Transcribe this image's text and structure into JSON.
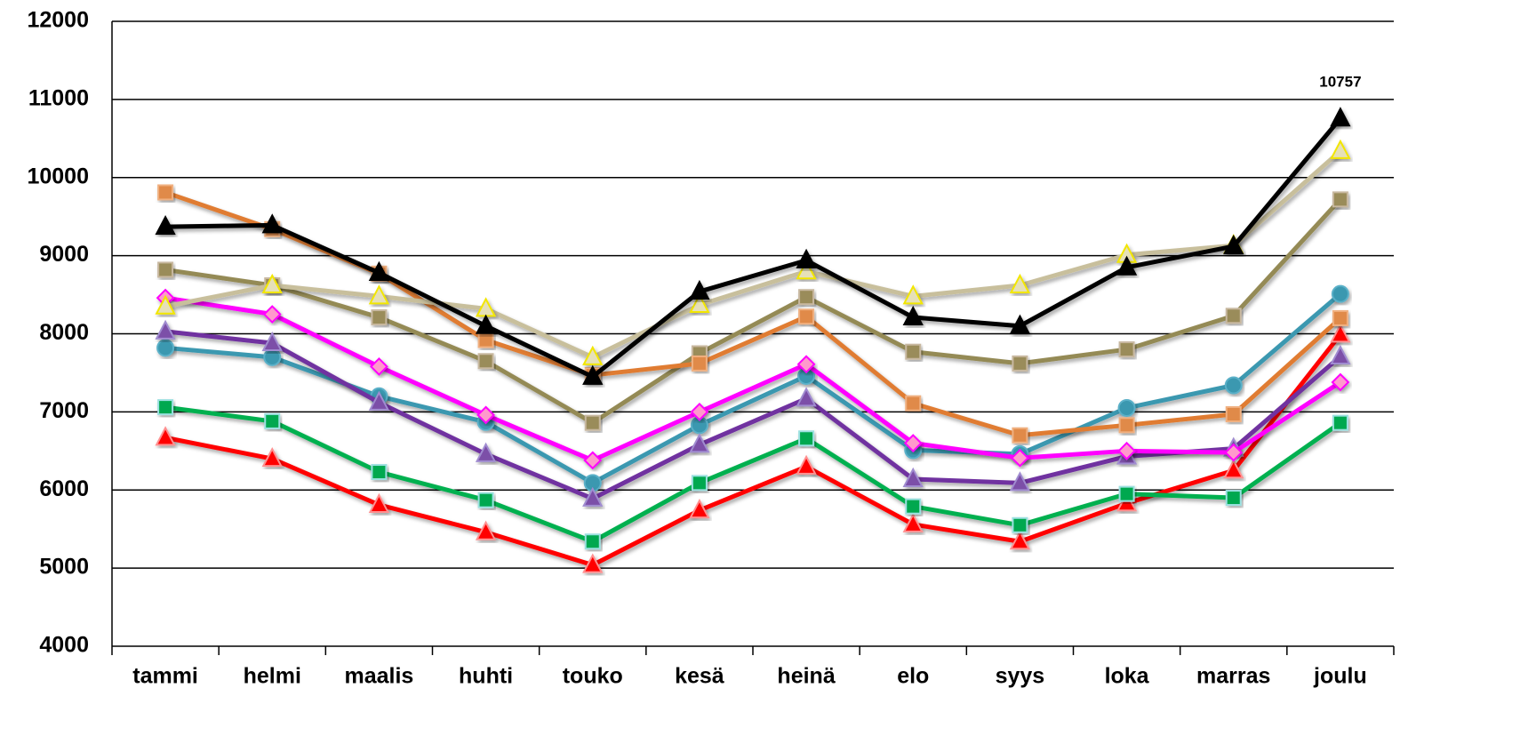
{
  "chart_data": {
    "type": "line",
    "categories": [
      "tammi",
      "helmi",
      "maalis",
      "huhti",
      "touko",
      "kesä",
      "heinä",
      "elo",
      "syys",
      "loka",
      "marras",
      "joulu"
    ],
    "ylim": [
      4000,
      12000
    ],
    "yticks": [
      4000,
      5000,
      6000,
      7000,
      8000,
      9000,
      10000,
      11000,
      12000
    ],
    "grid": true,
    "series": [
      {
        "color": "#000000",
        "marker": "triangle",
        "marker_fill": "#000000",
        "marker_stroke": "#000000",
        "label_last": true,
        "values": [
          9370,
          9390,
          8780,
          8100,
          7450,
          8540,
          8940,
          8210,
          8100,
          8850,
          9120,
          10757
        ]
      },
      {
        "color": "#c8bf9c",
        "marker": "triangle",
        "marker_fill": "#e6e0b8",
        "marker_stroke": "#f2e600",
        "values": [
          8350,
          8620,
          8480,
          8320,
          7700,
          8370,
          8800,
          8480,
          8620,
          9010,
          9130,
          10340
        ]
      },
      {
        "color": "#e07b30",
        "marker": "square",
        "marker_fill": "#e08a4a",
        "marker_stroke": "#f0b080",
        "values": [
          9810,
          9340,
          8770,
          7920,
          7470,
          7620,
          8220,
          7110,
          6700,
          6830,
          6970,
          8200
        ]
      },
      {
        "color": "#948a54",
        "marker": "square",
        "marker_fill": "#9a8c5a",
        "marker_stroke": "#c8b8a0",
        "values": [
          8820,
          8620,
          8210,
          7650,
          6860,
          7750,
          8470,
          7770,
          7620,
          7800,
          8230,
          9720
        ]
      },
      {
        "color": "#ff00ff",
        "marker": "diamond",
        "marker_fill": "#ff99cc",
        "marker_stroke": "#ff00ff",
        "values": [
          8460,
          8250,
          7580,
          6960,
          6380,
          7000,
          7610,
          6600,
          6410,
          6500,
          6480,
          7380
        ]
      },
      {
        "color": "#7030a0",
        "marker": "triangle",
        "marker_fill": "#7b4fa8",
        "marker_stroke": "#a08cd0",
        "values": [
          8030,
          7880,
          7120,
          6460,
          5890,
          6580,
          7170,
          6140,
          6090,
          6430,
          6530,
          7710
        ]
      },
      {
        "color": "#3b98b0",
        "marker": "circle",
        "marker_fill": "#3a98b0",
        "marker_stroke": "#5ab0c8",
        "values": [
          7820,
          7700,
          7200,
          6870,
          6090,
          6830,
          7460,
          6510,
          6460,
          7050,
          7340,
          8510
        ]
      },
      {
        "color": "#00b050",
        "marker": "square",
        "marker_fill": "#00a850",
        "marker_stroke": "#9ce0e0",
        "values": [
          7060,
          6880,
          6230,
          5870,
          5340,
          6090,
          6660,
          5790,
          5550,
          5950,
          5900,
          6860
        ]
      },
      {
        "color": "#ff0000",
        "marker": "triangle",
        "marker_fill": "#ff0000",
        "marker_stroke": "#ff9090",
        "values": [
          6670,
          6400,
          5810,
          5460,
          5040,
          5740,
          6300,
          5560,
          5340,
          5830,
          6250,
          7990
        ]
      }
    ]
  }
}
